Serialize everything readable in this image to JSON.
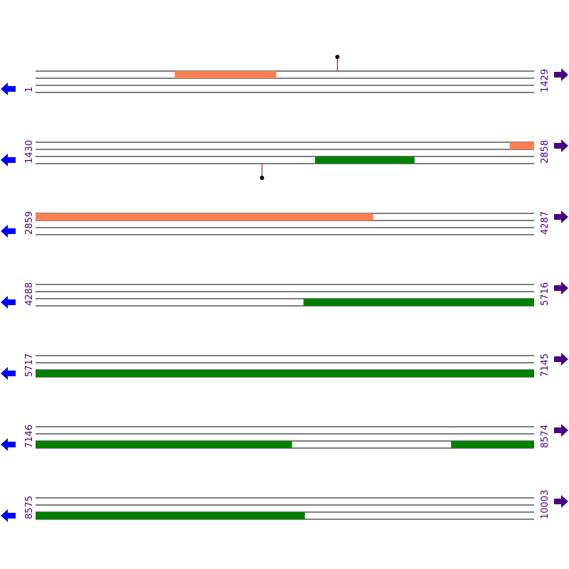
{
  "colors": {
    "line": "#000000",
    "orange_feature": "#ff7f50",
    "green_feature": "#008000",
    "left_arrow": "#0000ff",
    "right_arrow": "#4b0082",
    "coord_text": "#4b0082",
    "site_marker": "#000000",
    "site_stem": "#8b0000"
  },
  "icons": {
    "left_arrow": "arrow-left-icon",
    "right_arrow": "arrow-right-icon"
  },
  "rows": [
    {
      "start": "1",
      "end": "1429",
      "s": 1,
      "e": 1429
    },
    {
      "start": "1430",
      "end": "2858",
      "s": 1430,
      "e": 2858
    },
    {
      "start": "2859",
      "end": "4287",
      "s": 2859,
      "e": 4287
    },
    {
      "start": "4288",
      "end": "5716",
      "s": 4288,
      "e": 5716
    },
    {
      "start": "5717",
      "end": "7145",
      "s": 5717,
      "e": 7145
    },
    {
      "start": "7146",
      "end": "8574",
      "s": 7146,
      "e": 8574
    },
    {
      "start": "8575",
      "end": "10003",
      "s": 8575,
      "e": 10003
    }
  ],
  "features": [
    {
      "frame": 1,
      "start": 400,
      "end": 690,
      "color": "orange"
    },
    {
      "frame": 1,
      "start": 2789,
      "end": 2858,
      "color": "orange"
    },
    {
      "frame": 1,
      "start": 2859,
      "end": 3826,
      "color": "orange"
    },
    {
      "frame": 3,
      "start": 2231,
      "end": 2515,
      "color": "green"
    },
    {
      "frame": 3,
      "start": 5056,
      "end": 5716,
      "color": "green"
    },
    {
      "frame": 3,
      "start": 5717,
      "end": 7880,
      "color": "green"
    },
    {
      "frame": 3,
      "start": 8337,
      "end": 9346,
      "color": "green"
    }
  ],
  "sites": [
    {
      "pos": 866,
      "side": "above"
    },
    {
      "pos": 2079,
      "side": "below"
    }
  ]
}
